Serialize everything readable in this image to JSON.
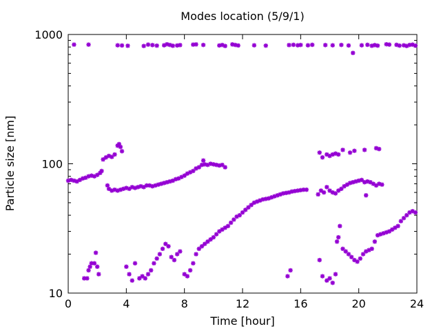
{
  "chart_data": {
    "type": "scatter",
    "title": "Modes location (5/9/1)",
    "xlabel": "Time [hour]",
    "ylabel": "Particle size [nm]",
    "xlim": [
      0,
      24
    ],
    "ylim": [
      10,
      1000
    ],
    "yscale": "log",
    "grid": false,
    "legend": "none",
    "x_ticks": [
      0,
      4,
      8,
      12,
      16,
      20,
      24
    ],
    "x_tick_labels": [
      "0",
      "4",
      "8",
      "12",
      "16",
      "20",
      "24"
    ],
    "y_ticks": [
      10,
      100,
      1000
    ],
    "y_tick_labels": [
      "10",
      "100",
      "1000"
    ],
    "marker_color": "#9400d3",
    "series": [
      {
        "points": [
          [
            0.4,
            835
          ],
          [
            1.4,
            835
          ],
          [
            3.4,
            825
          ],
          [
            3.7,
            822
          ],
          [
            4.1,
            818
          ],
          [
            5.2,
            815
          ],
          [
            5.5,
            835
          ],
          [
            5.8,
            828
          ],
          [
            6.1,
            820
          ],
          [
            6.6,
            825
          ],
          [
            6.8,
            840
          ],
          [
            7.0,
            830
          ],
          [
            7.2,
            818
          ],
          [
            7.5,
            822
          ],
          [
            7.7,
            828
          ],
          [
            8.6,
            835
          ],
          [
            8.8,
            838
          ],
          [
            9.3,
            830
          ],
          [
            10.4,
            822
          ],
          [
            10.6,
            830
          ],
          [
            10.8,
            815
          ],
          [
            11.3,
            838
          ],
          [
            11.5,
            830
          ],
          [
            11.7,
            822
          ],
          [
            12.8,
            825
          ],
          [
            13.6,
            820
          ],
          [
            15.2,
            828
          ],
          [
            15.5,
            832
          ],
          [
            15.8,
            825
          ],
          [
            16.0,
            830
          ],
          [
            16.5,
            825
          ],
          [
            16.8,
            832
          ],
          [
            17.7,
            828
          ],
          [
            18.2,
            825
          ],
          [
            18.8,
            830
          ],
          [
            19.3,
            822
          ],
          [
            19.6,
            720
          ],
          [
            20.2,
            825
          ],
          [
            20.6,
            832
          ],
          [
            20.9,
            818
          ],
          [
            21.1,
            828
          ],
          [
            21.3,
            820
          ],
          [
            21.9,
            840
          ],
          [
            22.1,
            835
          ],
          [
            22.6,
            832
          ],
          [
            22.8,
            820
          ],
          [
            23.1,
            825
          ],
          [
            23.3,
            815
          ],
          [
            23.5,
            830
          ],
          [
            23.7,
            835
          ],
          [
            23.9,
            820
          ]
        ]
      },
      {
        "points": [
          [
            0.0,
            74
          ],
          [
            0.2,
            75
          ],
          [
            0.4,
            74
          ],
          [
            0.6,
            73
          ],
          [
            0.8,
            75
          ],
          [
            1.0,
            77
          ],
          [
            1.2,
            78
          ],
          [
            1.4,
            80
          ],
          [
            1.6,
            81
          ],
          [
            1.8,
            80
          ],
          [
            2.0,
            82
          ],
          [
            2.2,
            85
          ],
          [
            2.3,
            88
          ],
          [
            2.4,
            108
          ],
          [
            2.6,
            112
          ],
          [
            2.8,
            115
          ],
          [
            3.0,
            113
          ],
          [
            3.2,
            118
          ],
          [
            3.4,
            138
          ],
          [
            3.5,
            142
          ],
          [
            3.6,
            135
          ],
          [
            3.7,
            125
          ],
          [
            2.7,
            68
          ],
          [
            2.8,
            64
          ],
          [
            3.0,
            62
          ],
          [
            3.2,
            63
          ],
          [
            3.4,
            62
          ],
          [
            3.6,
            63
          ],
          [
            3.8,
            64
          ],
          [
            4.0,
            65
          ],
          [
            4.2,
            64
          ],
          [
            4.4,
            66
          ],
          [
            4.6,
            65
          ],
          [
            4.8,
            66
          ],
          [
            5.0,
            67
          ],
          [
            5.2,
            66
          ],
          [
            5.4,
            68
          ],
          [
            5.6,
            68
          ],
          [
            5.8,
            67
          ],
          [
            6.0,
            68
          ],
          [
            6.2,
            69
          ],
          [
            6.4,
            70
          ],
          [
            6.6,
            71
          ],
          [
            6.8,
            72
          ],
          [
            7.0,
            73
          ],
          [
            7.2,
            74
          ],
          [
            7.4,
            76
          ],
          [
            7.6,
            77
          ],
          [
            7.8,
            79
          ],
          [
            8.0,
            81
          ],
          [
            8.2,
            84
          ],
          [
            8.4,
            86
          ],
          [
            8.6,
            88
          ],
          [
            8.8,
            92
          ],
          [
            9.0,
            94
          ],
          [
            9.2,
            98
          ],
          [
            9.3,
            106
          ],
          [
            9.4,
            99
          ],
          [
            9.6,
            98
          ],
          [
            9.8,
            100
          ],
          [
            10.0,
            99
          ],
          [
            10.2,
            98
          ],
          [
            10.4,
            97
          ],
          [
            10.6,
            98
          ],
          [
            10.8,
            94
          ],
          [
            17.2,
            58
          ],
          [
            17.4,
            62
          ],
          [
            17.6,
            60
          ],
          [
            17.8,
            66
          ],
          [
            18.0,
            62
          ],
          [
            18.2,
            60
          ],
          [
            18.4,
            59
          ],
          [
            18.6,
            62
          ],
          [
            18.8,
            64
          ],
          [
            19.0,
            67
          ],
          [
            19.2,
            69
          ],
          [
            19.4,
            71
          ],
          [
            19.6,
            72
          ],
          [
            19.8,
            73
          ],
          [
            20.0,
            74
          ],
          [
            20.2,
            75
          ],
          [
            20.4,
            72
          ],
          [
            20.6,
            73
          ],
          [
            20.8,
            72
          ],
          [
            21.0,
            70
          ],
          [
            21.2,
            68
          ],
          [
            21.4,
            70
          ],
          [
            21.6,
            69
          ],
          [
            20.5,
            57
          ],
          [
            17.3,
            122
          ],
          [
            17.5,
            112
          ],
          [
            17.8,
            118
          ],
          [
            18.0,
            115
          ],
          [
            18.2,
            118
          ],
          [
            18.4,
            120
          ],
          [
            18.6,
            118
          ],
          [
            18.9,
            128
          ],
          [
            19.4,
            122
          ],
          [
            19.7,
            126
          ],
          [
            20.4,
            128
          ],
          [
            21.2,
            132
          ],
          [
            21.4,
            130
          ]
        ]
      },
      {
        "points": [
          [
            1.1,
            13
          ],
          [
            1.3,
            13
          ],
          [
            1.4,
            15
          ],
          [
            1.5,
            16
          ],
          [
            1.6,
            17
          ],
          [
            1.8,
            17
          ],
          [
            1.9,
            20.5
          ],
          [
            2.0,
            16
          ],
          [
            2.1,
            14
          ],
          [
            4.0,
            16
          ],
          [
            4.2,
            14
          ],
          [
            4.4,
            12.5
          ],
          [
            4.6,
            17
          ],
          [
            4.9,
            13
          ],
          [
            5.1,
            13.5
          ],
          [
            5.3,
            13
          ],
          [
            5.5,
            14
          ],
          [
            5.7,
            15
          ],
          [
            5.9,
            17
          ],
          [
            6.1,
            18.5
          ],
          [
            6.3,
            20
          ],
          [
            6.5,
            22
          ],
          [
            6.7,
            24
          ],
          [
            6.9,
            23
          ],
          [
            7.1,
            19
          ],
          [
            7.3,
            18
          ],
          [
            7.5,
            20
          ],
          [
            7.7,
            21
          ],
          [
            8.0,
            14
          ],
          [
            8.2,
            13.5
          ],
          [
            8.4,
            15
          ],
          [
            8.6,
            17
          ],
          [
            8.8,
            20
          ],
          [
            9.0,
            22
          ],
          [
            9.2,
            23
          ],
          [
            9.4,
            24
          ],
          [
            9.6,
            25
          ],
          [
            9.8,
            26
          ],
          [
            10.0,
            27
          ],
          [
            10.2,
            28.5
          ],
          [
            10.4,
            30
          ],
          [
            10.6,
            31
          ],
          [
            10.8,
            32
          ],
          [
            11.0,
            33
          ],
          [
            11.2,
            35
          ],
          [
            11.4,
            37
          ],
          [
            11.6,
            39
          ],
          [
            11.8,
            40
          ],
          [
            12.0,
            42
          ],
          [
            12.2,
            44
          ],
          [
            12.4,
            46
          ],
          [
            12.6,
            48
          ],
          [
            12.8,
            50
          ],
          [
            13.0,
            51
          ],
          [
            13.2,
            52
          ],
          [
            13.4,
            53
          ],
          [
            13.6,
            53.5
          ],
          [
            13.8,
            54
          ],
          [
            14.0,
            55
          ],
          [
            14.2,
            56
          ],
          [
            14.4,
            57
          ],
          [
            14.6,
            58
          ],
          [
            14.8,
            59
          ],
          [
            15.0,
            59.5
          ],
          [
            15.2,
            60
          ],
          [
            15.4,
            61
          ],
          [
            15.6,
            61.5
          ],
          [
            15.8,
            62
          ],
          [
            16.0,
            62.5
          ],
          [
            16.2,
            63
          ],
          [
            16.4,
            63
          ],
          [
            15.1,
            13.5
          ],
          [
            15.3,
            15
          ],
          [
            17.3,
            18
          ],
          [
            17.5,
            13.5
          ],
          [
            17.8,
            12.5
          ],
          [
            18.0,
            13
          ],
          [
            18.2,
            12
          ],
          [
            18.4,
            14
          ],
          [
            18.5,
            25
          ],
          [
            18.6,
            27
          ],
          [
            18.7,
            33
          ],
          [
            18.9,
            22
          ],
          [
            19.1,
            21
          ],
          [
            19.3,
            20
          ],
          [
            19.5,
            19
          ],
          [
            19.7,
            18
          ],
          [
            19.9,
            17.5
          ],
          [
            20.1,
            18.5
          ],
          [
            20.3,
            20
          ],
          [
            20.5,
            21
          ],
          [
            20.7,
            21.5
          ],
          [
            20.9,
            22
          ],
          [
            21.1,
            25
          ],
          [
            21.3,
            28
          ],
          [
            21.5,
            28.5
          ],
          [
            21.7,
            29
          ],
          [
            21.9,
            29.5
          ],
          [
            22.1,
            30
          ],
          [
            22.3,
            31
          ],
          [
            22.5,
            32
          ],
          [
            22.7,
            33
          ],
          [
            22.9,
            36
          ],
          [
            23.1,
            38
          ],
          [
            23.3,
            40
          ],
          [
            23.5,
            42
          ],
          [
            23.7,
            43
          ],
          [
            23.9,
            42
          ]
        ]
      }
    ]
  }
}
